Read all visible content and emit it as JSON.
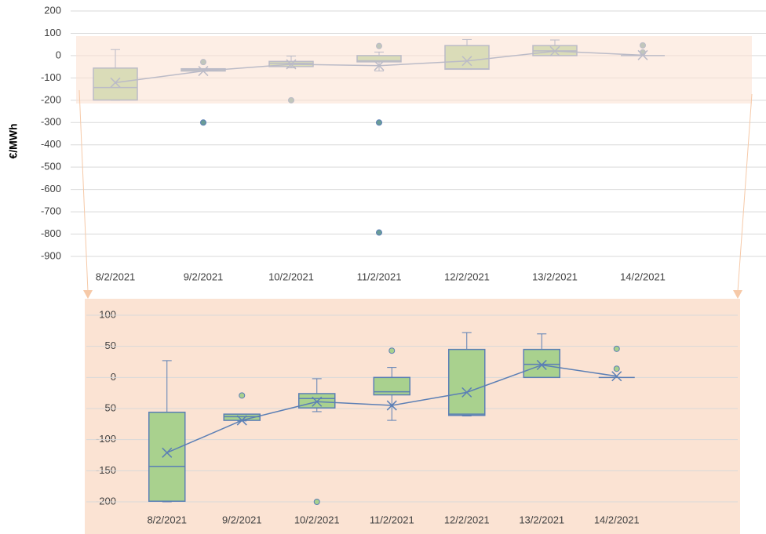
{
  "chart_data": [
    {
      "type": "box",
      "y_label": "€/MWh",
      "categories": [
        "8/2/2021",
        "9/2/2021",
        "10/2/2021",
        "11/2/2021",
        "12/2/2021",
        "13/2/2021",
        "14/2/2021"
      ],
      "min": [
        -200,
        -70,
        -55,
        -69,
        -62,
        0,
        0
      ],
      "q1": [
        -199,
        -69,
        -49,
        -28,
        -61,
        0,
        0
      ],
      "median": [
        -143,
        -63,
        -34,
        -23,
        -59,
        21,
        0
      ],
      "q3": [
        -56,
        -59,
        -26,
        0,
        45,
        45,
        0
      ],
      "max": [
        27,
        -59,
        -2,
        16,
        72,
        70,
        0
      ],
      "mean": [
        -121,
        -69,
        -39,
        -45,
        -24,
        20,
        2
      ],
      "outliers": [
        [],
        [
          -29,
          -300
        ],
        [
          -200
        ],
        [
          43,
          -300,
          -793
        ],
        [],
        [],
        [
          46,
          14
        ]
      ],
      "ylim": [
        -900,
        200
      ],
      "yticks": [
        200,
        100,
        0,
        -100,
        -200,
        -300,
        -400,
        -500,
        -600,
        -700,
        -800,
        -900
      ],
      "grid": true,
      "color": "#a9d18e",
      "line_color": "#5b7fb5",
      "outlier_color": "#6a9c97"
    },
    {
      "type": "box",
      "categories": [
        "8/2/2021",
        "9/2/2021",
        "10/2/2021",
        "11/2/2021",
        "12/2/2021",
        "13/2/2021",
        "14/2/2021"
      ],
      "min": [
        -200,
        -70,
        -55,
        -69,
        -62,
        0,
        0
      ],
      "q1": [
        -199,
        -69,
        -49,
        -28,
        -61,
        0,
        0
      ],
      "median": [
        -143,
        -63,
        -34,
        -23,
        -59,
        21,
        0
      ],
      "q3": [
        -56,
        -59,
        -26,
        0,
        45,
        45,
        0
      ],
      "max": [
        27,
        -59,
        -2,
        16,
        72,
        70,
        0
      ],
      "mean": [
        -121,
        -69,
        -39,
        -45,
        -24,
        20,
        2
      ],
      "outliers": [
        [],
        [
          -29
        ],
        [
          -200
        ],
        [
          43
        ],
        [],
        [],
        [
          46,
          14
        ]
      ],
      "ylim": [
        -200,
        100
      ],
      "yticks": [
        100,
        50,
        0,
        -50,
        -100,
        -150,
        -200
      ],
      "grid": true,
      "color": "#a9d18e",
      "line_color": "#5b7fb5",
      "outlier_color": "#a9d18e"
    }
  ]
}
